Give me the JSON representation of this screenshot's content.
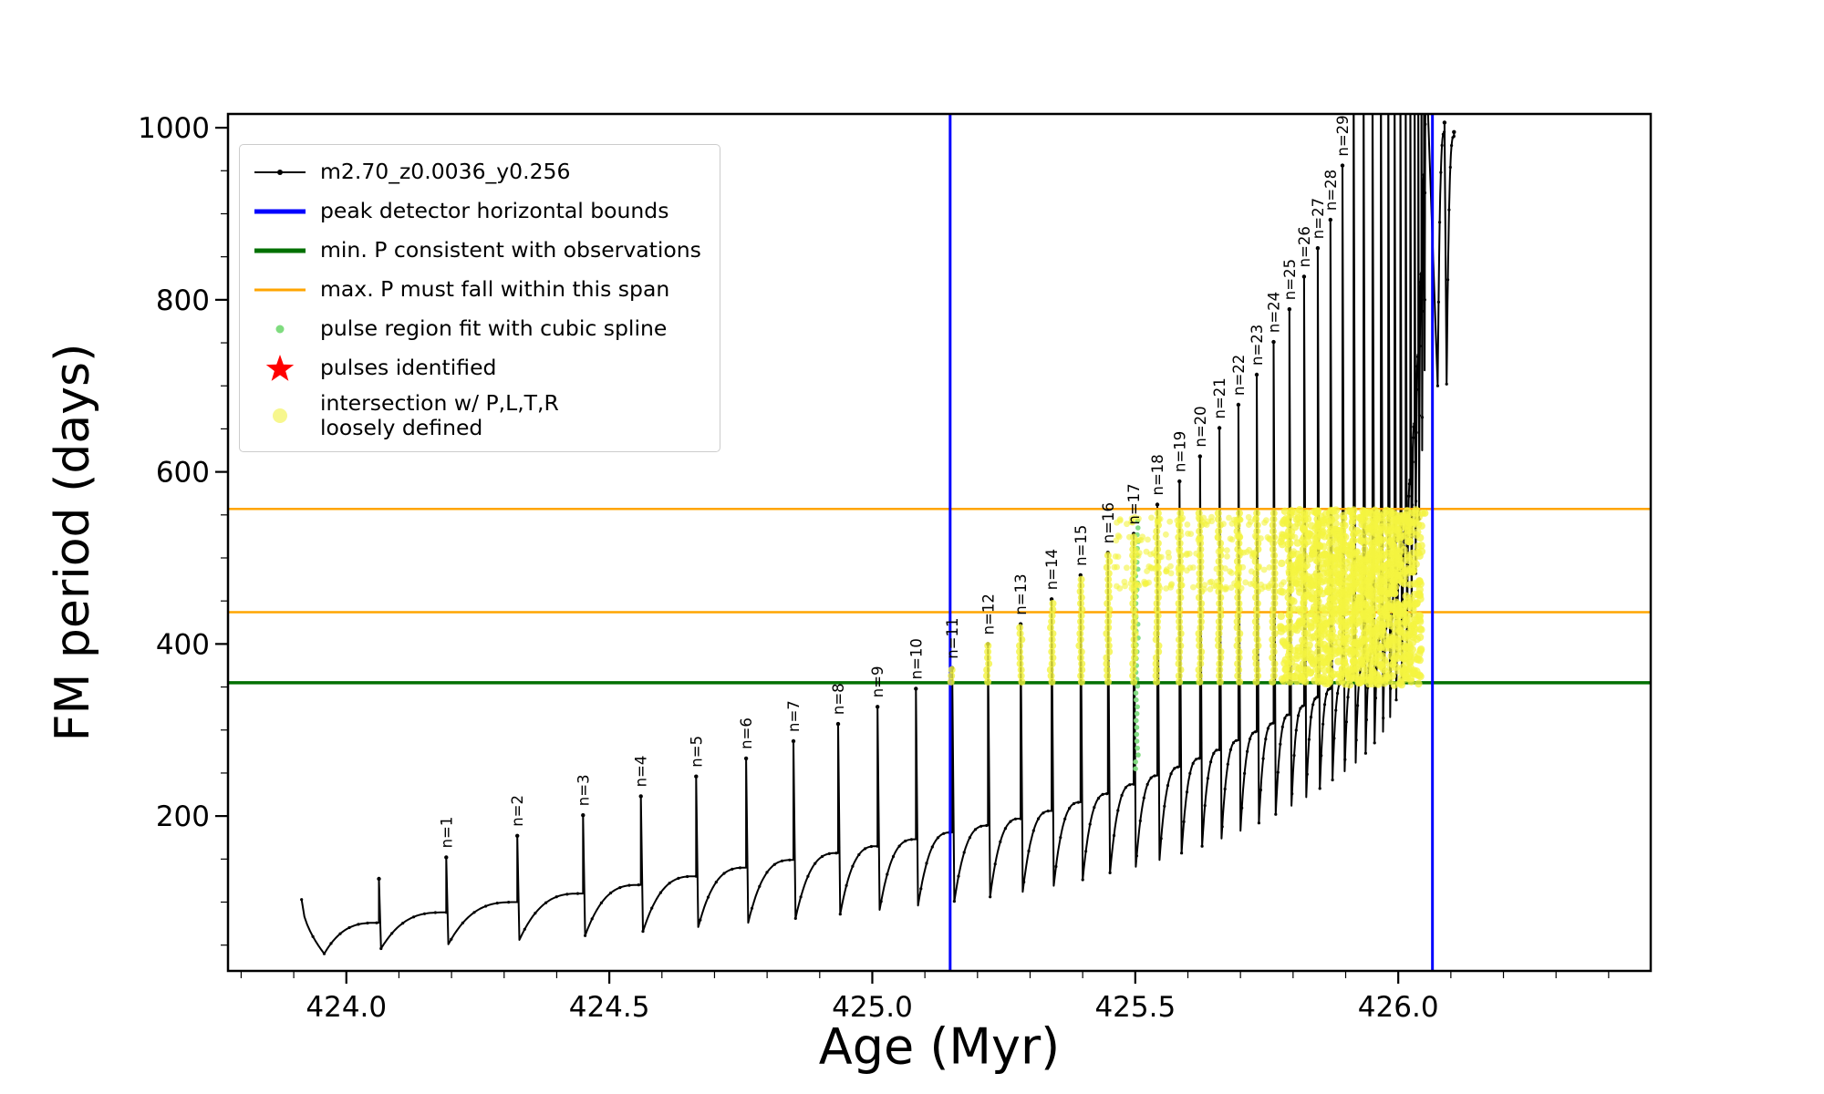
{
  "figure": {
    "background": "#ffffff"
  },
  "chart_data": {
    "type": "line",
    "title": "",
    "xlabel": "Age (Myr)",
    "ylabel": "FM period (days)",
    "xlim": [
      423.775,
      426.48
    ],
    "ylim": [
      20,
      1016
    ],
    "xticks": [
      424.0,
      424.5,
      425.0,
      425.5,
      426.0
    ],
    "x_minor_step": 0.1,
    "yticks": [
      200,
      400,
      600,
      800,
      1000
    ],
    "y_minor_step": 50,
    "grid": false,
    "legend_position": "upper-left",
    "series_name": "m2.70_z0.0036_y0.256",
    "colors": {
      "series": "#000000",
      "peak_bounds": "#0000ff",
      "min_P": "#007000",
      "max_P_span": "#ffa500",
      "spline_fit": "#7fdc7f",
      "pulses_identified": "#ff0000",
      "intersection": "#f4f440"
    },
    "legend": [
      {
        "symbol": "line-dot",
        "color": "#000000",
        "label": "m2.70_z0.0036_y0.256"
      },
      {
        "symbol": "thick-line",
        "color": "#0000ff",
        "label": "peak detector horizontal bounds"
      },
      {
        "symbol": "thick-line",
        "color": "#007000",
        "label": "min. P consistent with observations"
      },
      {
        "symbol": "line",
        "color": "#ffa500",
        "label": "max. P must fall within this span"
      },
      {
        "symbol": "dot-small",
        "color": "#7fdc7f",
        "label": "pulse region fit with cubic spline"
      },
      {
        "symbol": "star",
        "color": "#ff0000",
        "label": "pulses identified"
      },
      {
        "symbol": "dot-large",
        "color": "#f6f67a",
        "label": "intersection w/ P,L,T,R\nloosely defined"
      }
    ],
    "peak_detector_bounds_x": [
      425.148,
      426.065
    ],
    "min_P_line_y": 355,
    "max_P_span_y": [
      437,
      557
    ],
    "lead_in": {
      "x0": 423.915,
      "y0": 103,
      "x1": 423.958
    },
    "pulses": [
      {
        "x": 424.062,
        "min": 40,
        "plat": 76,
        "peak": 127
      },
      {
        "x": 424.19,
        "min": 46,
        "plat": 88,
        "peak": 152,
        "label": "n=1"
      },
      {
        "x": 424.325,
        "min": 51,
        "plat": 100,
        "peak": 177,
        "label": "n=2"
      },
      {
        "x": 424.45,
        "min": 56,
        "plat": 110,
        "peak": 201,
        "label": "n=3"
      },
      {
        "x": 424.56,
        "min": 61,
        "plat": 120,
        "peak": 223,
        "label": "n=4"
      },
      {
        "x": 424.665,
        "min": 66,
        "plat": 130,
        "peak": 246,
        "label": "n=5"
      },
      {
        "x": 424.76,
        "min": 71,
        "plat": 140,
        "peak": 267,
        "label": "n=6"
      },
      {
        "x": 424.85,
        "min": 76,
        "plat": 149,
        "peak": 287,
        "label": "n=7"
      },
      {
        "x": 424.935,
        "min": 81,
        "plat": 157,
        "peak": 307,
        "label": "n=8"
      },
      {
        "x": 425.01,
        "min": 86,
        "plat": 165,
        "peak": 327,
        "label": "n=9"
      },
      {
        "x": 425.083,
        "min": 91,
        "plat": 173,
        "peak": 348,
        "label": "n=10"
      },
      {
        "x": 425.152,
        "min": 96,
        "plat": 181,
        "peak": 372,
        "label": "n=11"
      },
      {
        "x": 425.22,
        "min": 101,
        "plat": 189,
        "peak": 400,
        "label": "n=12"
      },
      {
        "x": 425.282,
        "min": 106,
        "plat": 197,
        "peak": 423,
        "label": "n=13"
      },
      {
        "x": 425.341,
        "min": 112,
        "plat": 206,
        "peak": 452,
        "label": "n=14"
      },
      {
        "x": 425.396,
        "min": 119,
        "plat": 216,
        "peak": 480,
        "label": "n=15"
      },
      {
        "x": 425.448,
        "min": 126,
        "plat": 226,
        "peak": 506,
        "label": "n=16"
      },
      {
        "x": 425.497,
        "min": 134,
        "plat": 237,
        "peak": 528,
        "label": "n=17"
      },
      {
        "x": 425.542,
        "min": 141,
        "plat": 247,
        "peak": 562,
        "label": "n=18"
      },
      {
        "x": 425.584,
        "min": 149,
        "plat": 257,
        "peak": 589,
        "label": "n=19"
      },
      {
        "x": 425.623,
        "min": 157,
        "plat": 267,
        "peak": 618,
        "label": "n=20"
      },
      {
        "x": 425.66,
        "min": 165,
        "plat": 277,
        "peak": 651,
        "label": "n=21"
      },
      {
        "x": 425.696,
        "min": 174,
        "plat": 288,
        "peak": 678,
        "label": "n=22"
      },
      {
        "x": 425.731,
        "min": 183,
        "plat": 298,
        "peak": 713,
        "label": "n=23"
      },
      {
        "x": 425.763,
        "min": 192,
        "plat": 308,
        "peak": 751,
        "label": "n=24"
      },
      {
        "x": 425.793,
        "min": 202,
        "plat": 318,
        "peak": 789,
        "label": "n=25"
      },
      {
        "x": 425.821,
        "min": 212,
        "plat": 328,
        "peak": 827,
        "label": "n=26"
      },
      {
        "x": 425.847,
        "min": 222,
        "plat": 338,
        "peak": 860,
        "label": "n=27"
      },
      {
        "x": 425.871,
        "min": 232,
        "plat": 348,
        "peak": 893,
        "label": "n=28"
      },
      {
        "x": 425.894,
        "min": 242,
        "plat": 357,
        "peak": 956,
        "label": "n=29"
      },
      {
        "x": 425.915,
        "min": 252,
        "plat": 366,
        "peak": 1080
      },
      {
        "x": 425.934,
        "min": 262,
        "plat": 377,
        "peak": 1080
      },
      {
        "x": 425.951,
        "min": 273,
        "plat": 391,
        "peak": 1080
      },
      {
        "x": 425.967,
        "min": 285,
        "plat": 409,
        "peak": 1080
      },
      {
        "x": 425.981,
        "min": 298,
        "plat": 431,
        "peak": 1080
      },
      {
        "x": 425.993,
        "min": 315,
        "plat": 459,
        "peak": 1080
      },
      {
        "x": 426.004,
        "min": 335,
        "plat": 493,
        "peak": 1080
      },
      {
        "x": 426.014,
        "min": 360,
        "plat": 536,
        "peak": 1080
      },
      {
        "x": 426.023,
        "min": 392,
        "plat": 591,
        "peak": 1080
      },
      {
        "x": 426.031,
        "min": 432,
        "plat": 656,
        "peak": 1080
      },
      {
        "x": 426.038,
        "min": 482,
        "plat": 736,
        "peak": 1080
      },
      {
        "x": 426.044,
        "min": 545,
        "plat": 831,
        "peak": 1080
      },
      {
        "x": 426.049,
        "min": 625,
        "plat": 946,
        "peak": 1080
      },
      {
        "x": 426.053,
        "min": 718,
        "plat": 1075,
        "peak": 1080,
        "dropdx": 0.022
      },
      {
        "x": 426.088,
        "min": 700,
        "plat": 995,
        "peak": 1006
      },
      {
        "x": 426.106,
        "min": 702,
        "plat": 990,
        "peak": 995
      }
    ],
    "spline_column": {
      "x": 425.503,
      "y_from": 255,
      "y_to": 548
    },
    "yellow_band": {
      "y_from": 352,
      "y_to": 556,
      "dense_x": [
        425.775,
        426.045
      ],
      "sparse_x": [
        425.46,
        425.82
      ],
      "sparse_rows": [
        468,
        486,
        505,
        524,
        543
      ],
      "spike_band": [
        356,
        552
      ]
    }
  }
}
